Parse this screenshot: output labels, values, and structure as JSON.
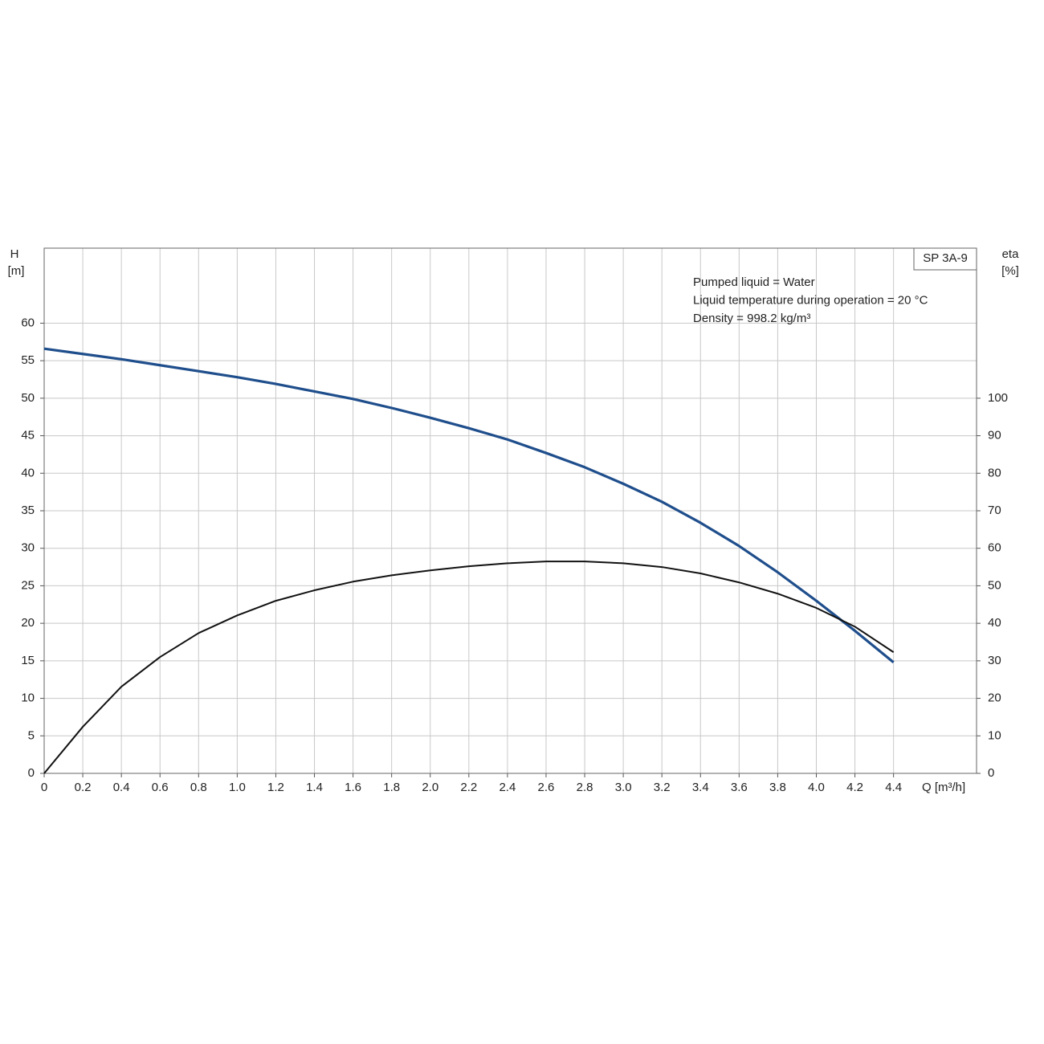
{
  "chart_data": {
    "type": "line",
    "title": "SP 3A-9",
    "annotations": [
      "Pumped liquid = Water",
      "Liquid temperature during operation = 20 °C",
      "Density = 998.2 kg/m³"
    ],
    "x_label": "Q [m³/h]",
    "y_label": "H",
    "y_unit": "[m]",
    "y2_label": "eta",
    "y2_unit": "[%]",
    "x": [
      0,
      0.2,
      0.4,
      0.6,
      0.8,
      1.0,
      1.2,
      1.4,
      1.6,
      1.8,
      2.0,
      2.2,
      2.4,
      2.6,
      2.8,
      3.0,
      3.2,
      3.4,
      3.6,
      3.8,
      4.0,
      4.2,
      4.4
    ],
    "series": [
      {
        "color": "#1f4e8c",
        "values": [
          56.6,
          55.9,
          55.2,
          54.4,
          53.6,
          52.8,
          51.9,
          50.9,
          49.9,
          48.7,
          47.4,
          46.0,
          44.5,
          42.7,
          40.8,
          38.6,
          36.2,
          33.4,
          30.3,
          26.8,
          23.0,
          19.0,
          14.8
        ]
      },
      {
        "color": "#111111",
        "axis": "y2",
        "values": [
          0,
          12.4,
          23.1,
          31.0,
          37.4,
          42.1,
          46.0,
          48.8,
          51.1,
          52.8,
          54.1,
          55.2,
          56.0,
          56.5,
          56.5,
          56.0,
          55.0,
          53.3,
          50.9,
          47.9,
          44.1,
          39.1,
          32.3
        ]
      }
    ],
    "xlim": [
      0,
      4.83
    ],
    "xticks": [
      0,
      0.2,
      0.4,
      0.6,
      0.8,
      {
        "value": 1,
        "label": "1.0"
      },
      1.2,
      1.4,
      1.6,
      1.8,
      {
        "value": 2,
        "label": "2.0"
      },
      2.2,
      2.4,
      2.6,
      2.8,
      {
        "value": 3,
        "label": "3.0"
      },
      3.2,
      3.4,
      3.6,
      3.8,
      {
        "value": 4,
        "label": "4.0"
      },
      4.2,
      4.4
    ],
    "ylim": [
      0,
      70
    ],
    "yticks": [
      0,
      5,
      10,
      15,
      20,
      25,
      30,
      35,
      40,
      45,
      50,
      55,
      60
    ],
    "y2lim": [
      0,
      140
    ],
    "y2ticks": [
      0,
      10,
      20,
      30,
      40,
      50,
      60,
      70,
      80,
      90,
      100
    ],
    "grid": true
  }
}
